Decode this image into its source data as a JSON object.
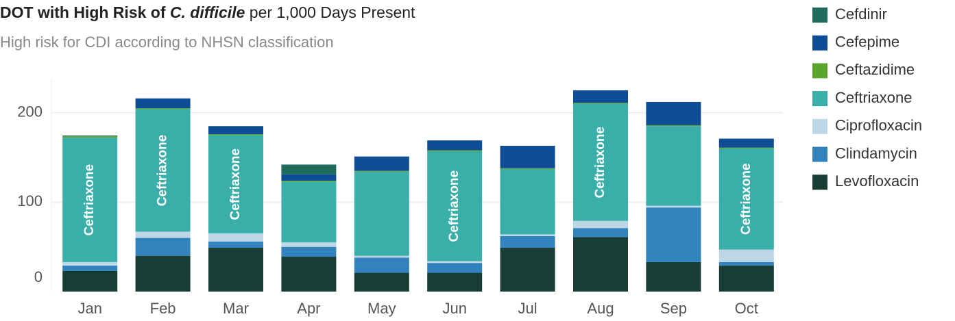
{
  "chart_data": {
    "type": "stacked_bar",
    "title": [
      "DOT with High Risk of ",
      "C. difficile",
      " per 1,000 Days Present"
    ],
    "subtitle": "High risk for CDI according to NHSN classification",
    "categories": [
      "Jan",
      "Feb",
      "Mar",
      "Apr",
      "May",
      "Jun",
      "Jul",
      "Aug",
      "Sep",
      "Oct"
    ],
    "legend_order": [
      6,
      5,
      4,
      3,
      2,
      1,
      0
    ],
    "series": [
      {
        "name": "Levofloxacin",
        "color": "#173d34",
        "values": [
          23,
          40,
          49,
          39,
          21,
          21,
          49,
          61,
          33,
          29
        ]
      },
      {
        "name": "Clindamycin",
        "color": "#3182bd",
        "values": [
          6,
          20,
          7,
          11,
          17,
          11,
          13,
          10,
          61,
          4
        ]
      },
      {
        "name": "Ciprofloxacin",
        "color": "#bdd7e7",
        "values": [
          4,
          7,
          9,
          5,
          2,
          2,
          2,
          8,
          2,
          14
        ]
      },
      {
        "name": "Ceftriaxone",
        "color": "#3aafa9",
        "values": [
          139,
          137,
          110,
          68,
          94,
          123,
          73,
          131,
          89,
          113
        ],
        "segment_labels": [
          "Ceftriaxone",
          "Ceftriaxone",
          "Ceftriaxone",
          null,
          null,
          "Ceftriaxone",
          null,
          "Ceftriaxone",
          null,
          "Ceftriaxone"
        ]
      },
      {
        "name": "Ceftazidime",
        "color": "#5aa52c",
        "values": [
          1.5,
          1,
          1,
          1,
          1,
          1,
          1,
          1,
          1,
          1
        ]
      },
      {
        "name": "Cefepime",
        "color": "#0e4d96",
        "values": [
          0,
          11,
          9,
          7,
          16,
          11,
          25,
          14,
          26,
          10
        ]
      },
      {
        "name": "Cefdinir",
        "color": "#1f6b5e",
        "values": [
          1,
          0,
          0,
          11,
          0,
          0,
          0,
          0,
          0,
          0
        ]
      }
    ],
    "ylim": [
      0,
      238
    ],
    "yticks": [
      0,
      100,
      200
    ],
    "grid": true
  }
}
